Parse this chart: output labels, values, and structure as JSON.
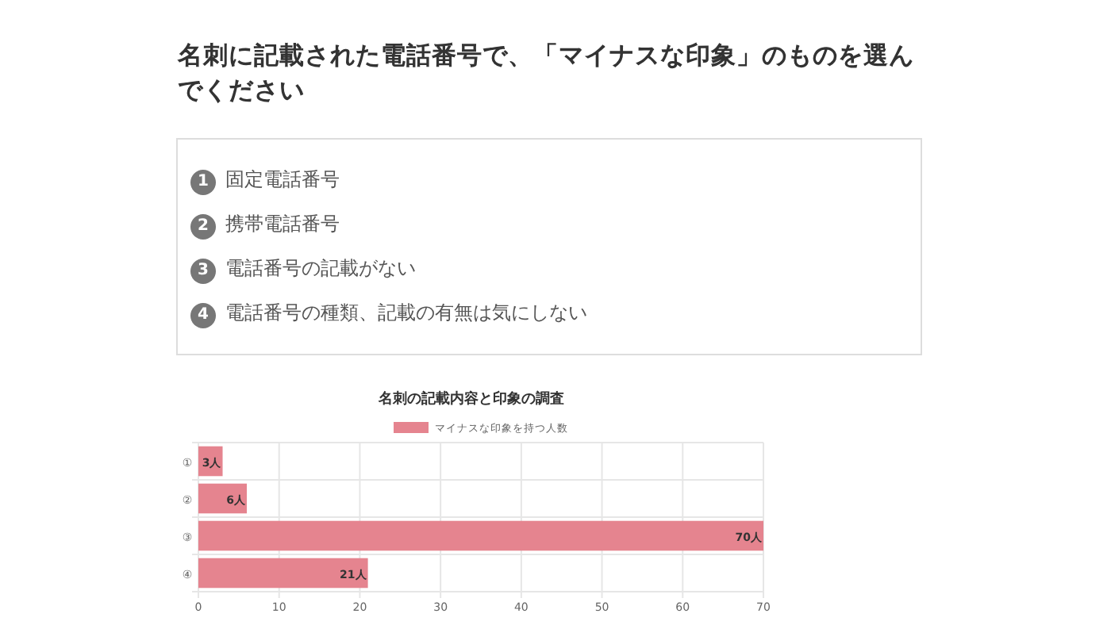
{
  "chart_data": {
    "type": "bar",
    "orientation": "horizontal",
    "title": "名刺の記載内容と印象の調査",
    "annotations": [
      "名刺に記載された電話番号で、「マイナスな印象」のものを選んでください",
      "1 固定電話番号",
      "2 携帯電話番号",
      "3 電話番号の記載がない",
      "4 電話番号の種類、記載の有無は気にしない"
    ],
    "categories": [
      "①",
      "②",
      "③",
      "④"
    ],
    "series": [
      {
        "name": "マイナスな印象を持つ人数",
        "color": "#e5848f",
        "values": [
          3,
          6,
          70,
          21
        ],
        "value_labels": [
          "3人",
          "6人",
          "70人",
          "21人"
        ]
      }
    ],
    "xlim": [
      0,
      70
    ],
    "xticks": [
      0,
      10,
      20,
      30,
      40,
      50,
      60,
      70
    ],
    "grid": true,
    "legend": "top"
  }
}
